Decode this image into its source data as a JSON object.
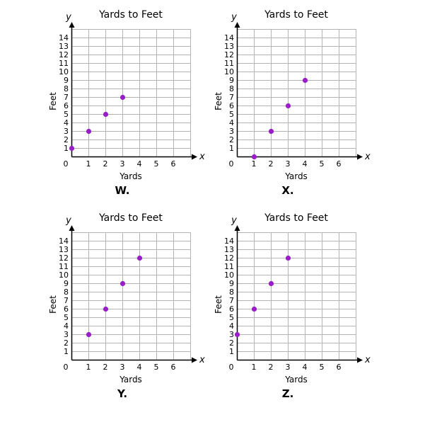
{
  "chart_data": [
    {
      "type": "scatter",
      "panel_label": "W.",
      "title": "Yards to Feet",
      "xlabel": "Yards",
      "ylabel": "Feet",
      "x_axis_symbol": "x",
      "y_axis_symbol": "y",
      "xlim": [
        0,
        7
      ],
      "ylim": [
        0,
        15
      ],
      "x_ticks": [
        "0",
        "1",
        "2",
        "3",
        "4",
        "5",
        "6"
      ],
      "y_ticks": [
        "1",
        "2",
        "3",
        "4",
        "5",
        "6",
        "7",
        "8",
        "9",
        "10",
        "11",
        "12",
        "13",
        "14"
      ],
      "grid": true,
      "points": [
        {
          "x": 0,
          "y": 1
        },
        {
          "x": 1,
          "y": 3
        },
        {
          "x": 2,
          "y": 5
        },
        {
          "x": 3,
          "y": 7
        }
      ]
    },
    {
      "type": "scatter",
      "panel_label": "X.",
      "title": "Yards to Feet",
      "xlabel": "Yards",
      "ylabel": "Feet",
      "x_axis_symbol": "x",
      "y_axis_symbol": "y",
      "xlim": [
        0,
        7
      ],
      "ylim": [
        0,
        15
      ],
      "x_ticks": [
        "0",
        "1",
        "2",
        "3",
        "4",
        "5",
        "6"
      ],
      "y_ticks": [
        "1",
        "2",
        "3",
        "4",
        "5",
        "6",
        "7",
        "8",
        "9",
        "10",
        "11",
        "12",
        "13",
        "14"
      ],
      "grid": true,
      "points": [
        {
          "x": 1,
          "y": 0
        },
        {
          "x": 2,
          "y": 3
        },
        {
          "x": 3,
          "y": 6
        },
        {
          "x": 4,
          "y": 9
        }
      ]
    },
    {
      "type": "scatter",
      "panel_label": "Y.",
      "title": "Yards to Feet",
      "xlabel": "Yards",
      "ylabel": "Feet",
      "x_axis_symbol": "x",
      "y_axis_symbol": "y",
      "xlim": [
        0,
        7
      ],
      "ylim": [
        0,
        15
      ],
      "x_ticks": [
        "0",
        "1",
        "2",
        "3",
        "4",
        "5",
        "6"
      ],
      "y_ticks": [
        "1",
        "2",
        "3",
        "4",
        "5",
        "6",
        "7",
        "8",
        "9",
        "10",
        "11",
        "12",
        "13",
        "14"
      ],
      "grid": true,
      "points": [
        {
          "x": 1,
          "y": 3
        },
        {
          "x": 2,
          "y": 6
        },
        {
          "x": 3,
          "y": 9
        },
        {
          "x": 4,
          "y": 12
        }
      ]
    },
    {
      "type": "scatter",
      "panel_label": "Z.",
      "title": "Yards to Feet",
      "xlabel": "Yards",
      "ylabel": "Feet",
      "x_axis_symbol": "x",
      "y_axis_symbol": "y",
      "xlim": [
        0,
        7
      ],
      "ylim": [
        0,
        15
      ],
      "x_ticks": [
        "0",
        "1",
        "2",
        "3",
        "4",
        "5",
        "6"
      ],
      "y_ticks": [
        "1",
        "2",
        "3",
        "4",
        "5",
        "6",
        "7",
        "8",
        "9",
        "10",
        "11",
        "12",
        "13",
        "14"
      ],
      "grid": true,
      "points": [
        {
          "x": 0,
          "y": 3
        },
        {
          "x": 1,
          "y": 6
        },
        {
          "x": 2,
          "y": 9
        },
        {
          "x": 3,
          "y": 12
        }
      ]
    }
  ],
  "colors": {
    "point": "#9a1ec8",
    "grid": "#b4b4b4",
    "axis": "#000000",
    "text": "#000000"
  }
}
